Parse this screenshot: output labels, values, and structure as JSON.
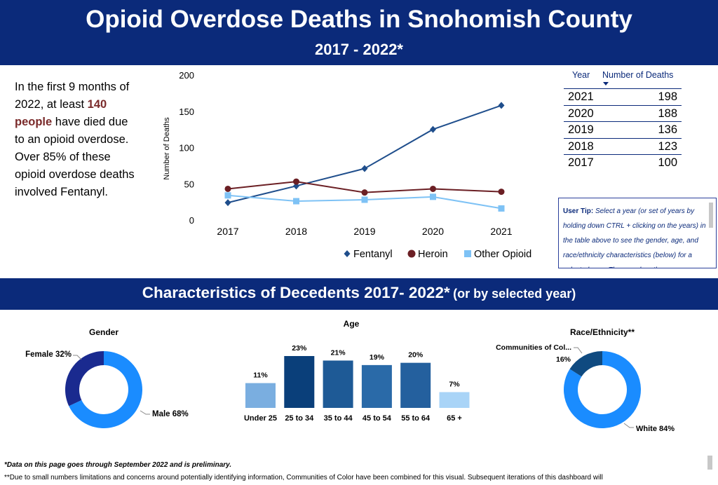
{
  "header": {
    "title": "Opioid Overdose Deaths in Snohomish County",
    "subtitle": "2017 - 2022*"
  },
  "intro": {
    "part1": "In the first 9 months of 2022, at least ",
    "highlight": "140 people",
    "part2": " have died due to an opioid overdose. Over 85% of these opioid overdose deaths involved Fentanyl."
  },
  "table": {
    "col_year": "Year",
    "col_deaths": "Number of Deaths",
    "rows": [
      {
        "year": "2021",
        "deaths": "198"
      },
      {
        "year": "2020",
        "deaths": "188"
      },
      {
        "year": "2019",
        "deaths": "136"
      },
      {
        "year": "2018",
        "deaths": "123"
      },
      {
        "year": "2017",
        "deaths": "100"
      }
    ]
  },
  "tip": {
    "label": "User Tip:",
    "text": " Select a year (or set of years by holding down CTRL + clicking on the years) in the table above to see the gender, age, and race/ethnicity characteristics (below) for a selected year. Then, explore the"
  },
  "section": {
    "title": "Characteristics of Decedents 2017- 2022*",
    "suffix": "(or by selected year)"
  },
  "footnotes": {
    "fn1": "*Data on this page goes through September 2022 and is preliminary.",
    "fn2": "**Due to small numbers limitations and concerns around potentially identifying information, Communities of Color have been combined for this visual. Subsequent iterations of this dashboard will"
  },
  "colors": {
    "navy": "#0b2a7a",
    "fentanyl": "#1f4e8c",
    "heroin": "#6b1f24",
    "other_opioid": "#7ec2f5",
    "donut_light": "#1a8cff",
    "donut_dark_gender": "#1a2a8f",
    "donut_dark_race": "#0f4a80"
  },
  "chart_data": [
    {
      "type": "line",
      "title": "",
      "xlabel": "",
      "ylabel": "Number of Deaths",
      "categories": [
        "2017",
        "2018",
        "2019",
        "2020",
        "2021"
      ],
      "ylim": [
        0,
        200
      ],
      "yticks": [
        0,
        50,
        100,
        150,
        200
      ],
      "grid": false,
      "legend": "bottom",
      "series": [
        {
          "name": "Fentanyl",
          "values": [
            25,
            48,
            72,
            126,
            159
          ],
          "marker": "diamond"
        },
        {
          "name": "Heroin",
          "values": [
            44,
            54,
            39,
            44,
            40
          ],
          "marker": "circle"
        },
        {
          "name": "Other Opioid",
          "values": [
            35,
            27,
            29,
            33,
            17
          ],
          "marker": "square"
        }
      ]
    },
    {
      "type": "pie",
      "title": "Gender",
      "slices": [
        {
          "label": "Male 68%",
          "value": 68
        },
        {
          "label": "Female 32%",
          "value": 32
        }
      ]
    },
    {
      "type": "bar",
      "title": "Age",
      "categories": [
        "Under 25",
        "25 to 34",
        "35 to 44",
        "45 to 54",
        "55 to 64",
        "65 +"
      ],
      "values": [
        11,
        23,
        21,
        19,
        20,
        7
      ],
      "labels": [
        "11%",
        "23%",
        "21%",
        "19%",
        "20%",
        "7%"
      ],
      "ylim": [
        0,
        23
      ],
      "colors": [
        "#7aaee0",
        "#0a3f7a",
        "#1e5a96",
        "#2a6aa8",
        "#24609e",
        "#a9d4f7"
      ]
    },
    {
      "type": "pie",
      "title": "Race/Ethnicity**",
      "slices": [
        {
          "label": "White 84%",
          "value": 84
        },
        {
          "label": "Communities of Col...",
          "value": 16,
          "value_label": "16%"
        }
      ]
    }
  ]
}
